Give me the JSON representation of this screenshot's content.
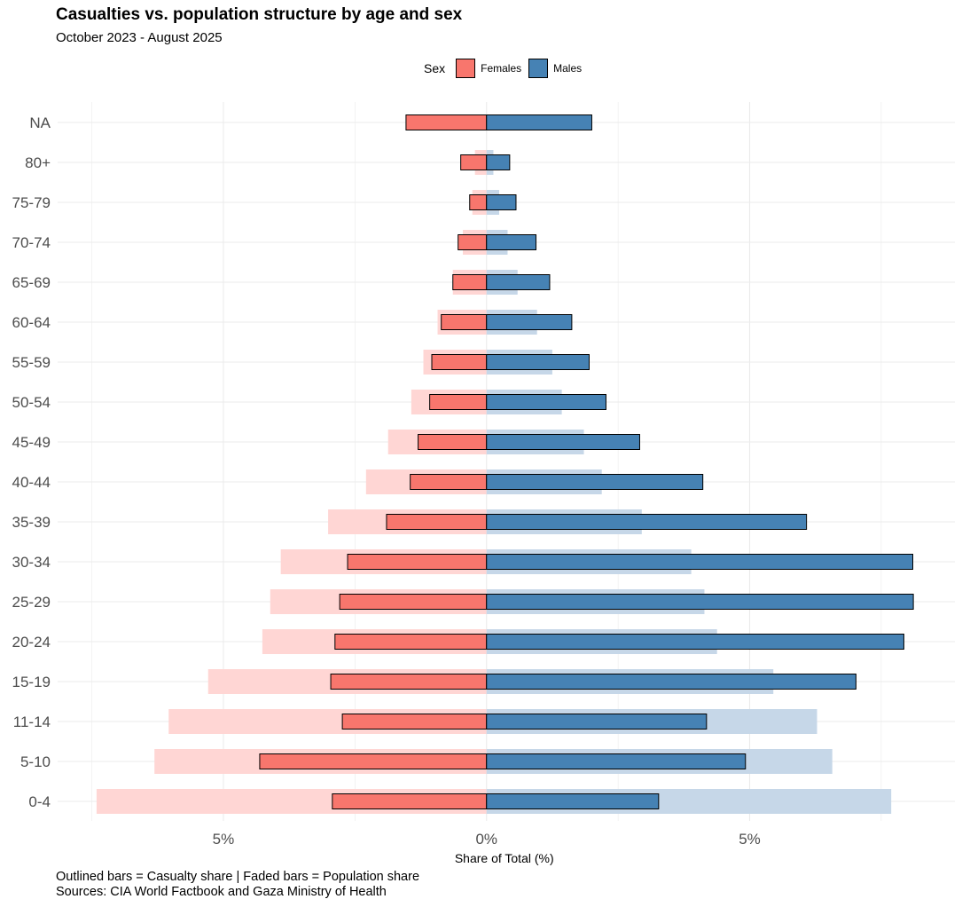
{
  "title": "Casualties vs. population structure by age and sex",
  "subtitle": "October 2023 - August 2025",
  "caption_line1": "Outlined bars = Casualty share | Faded bars = Population share",
  "caption_line2": " Sources: CIA World Factbook and Gaza Ministry of Health",
  "legend": {
    "title": "Sex",
    "items": [
      {
        "label": "Females",
        "color": "#F8766D"
      },
      {
        "label": "Males",
        "color": "#4682B4"
      }
    ],
    "placement": "top"
  },
  "chart_data": {
    "type": "bar",
    "orientation": "horizontal population pyramid",
    "xlabel": "Share of Total (%)",
    "ylabel": "",
    "xlim": [
      -8.15,
      8.9
    ],
    "x_ticks": [
      {
        "value": -5,
        "label": "5%"
      },
      {
        "value": 0,
        "label": "0%"
      },
      {
        "value": 5,
        "label": "5%"
      }
    ],
    "grid": true,
    "categories": [
      "0-4",
      "5-10",
      "11-14",
      "15-19",
      "20-24",
      "25-29",
      "30-34",
      "35-39",
      "40-44",
      "45-49",
      "50-54",
      "55-59",
      "60-64",
      "65-69",
      "70-74",
      "75-79",
      "80+",
      "NA"
    ],
    "series": [
      {
        "name": "Females",
        "kind": "casualty",
        "color": "#F8766D",
        "values": [
          2.93,
          4.31,
          2.74,
          2.96,
          2.88,
          2.79,
          2.64,
          1.9,
          1.45,
          1.3,
          1.08,
          1.04,
          0.86,
          0.64,
          0.54,
          0.32,
          0.49,
          1.53
        ]
      },
      {
        "name": "Males",
        "kind": "casualty",
        "color": "#4682B4",
        "values": [
          3.27,
          4.92,
          4.18,
          7.02,
          7.93,
          8.11,
          8.1,
          6.08,
          4.11,
          2.91,
          2.27,
          1.95,
          1.62,
          1.2,
          0.94,
          0.56,
          0.44,
          2.0
        ]
      },
      {
        "name": "Females",
        "kind": "population",
        "color": "#FFD6D4",
        "values": [
          7.41,
          6.31,
          6.04,
          5.29,
          4.26,
          4.11,
          3.91,
          3.01,
          2.29,
          1.87,
          1.43,
          1.2,
          0.93,
          0.64,
          0.45,
          0.27,
          0.22,
          null
        ]
      },
      {
        "name": "Males",
        "kind": "population",
        "color": "#C6D7E8",
        "values": [
          7.69,
          6.57,
          6.28,
          5.45,
          4.38,
          4.14,
          3.89,
          2.95,
          2.19,
          1.85,
          1.43,
          1.25,
          0.96,
          0.59,
          0.4,
          0.24,
          0.13,
          null
        ]
      }
    ]
  }
}
